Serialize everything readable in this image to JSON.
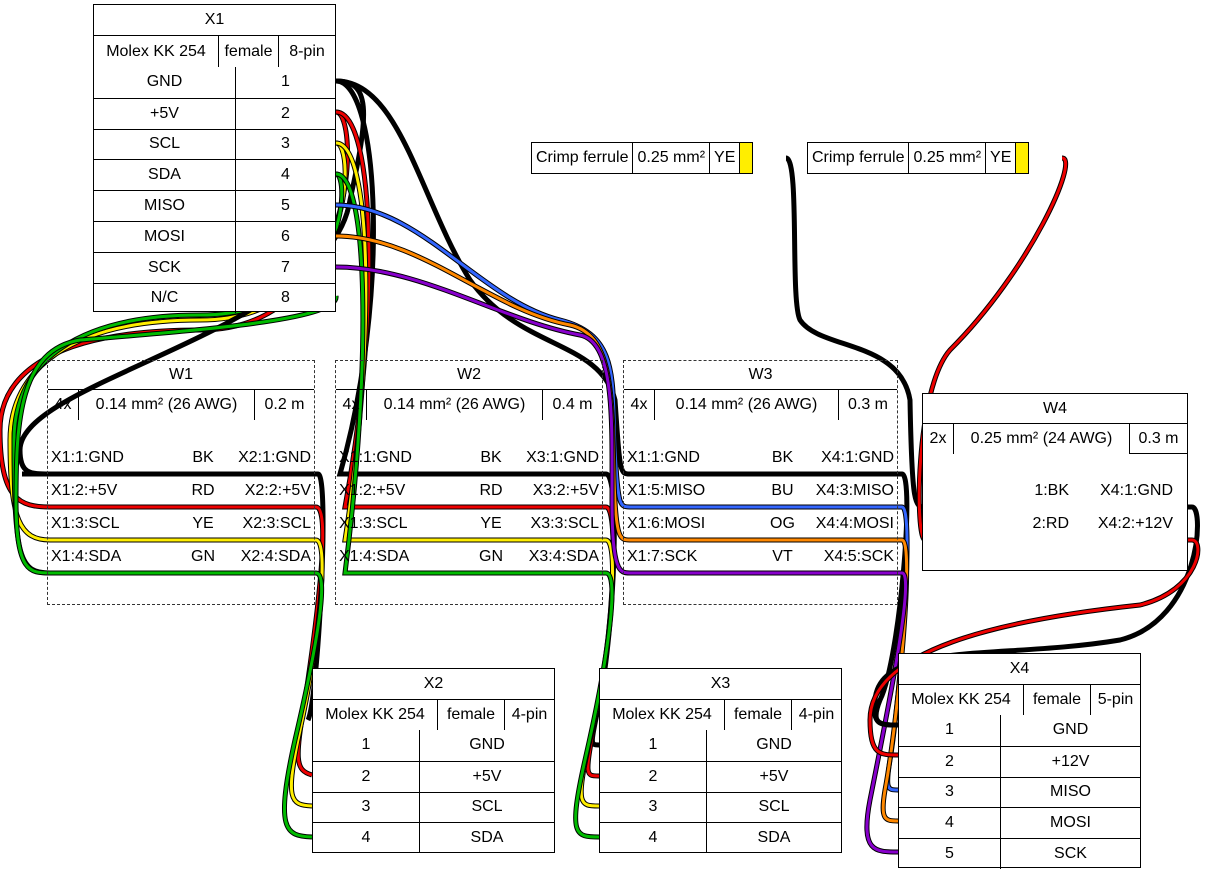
{
  "colors": {
    "BK": "#000000",
    "RD": "#ee0000",
    "YE": "#ffee00",
    "GN": "#00bb00",
    "BU": "#3366ff",
    "OG": "#ff8800",
    "VT": "#8800cc"
  },
  "x1": {
    "title": "X1",
    "type": "Molex KK 254",
    "gender": "female",
    "pins": "8-pin",
    "rows": [
      [
        "GND",
        "1"
      ],
      [
        "+5V",
        "2"
      ],
      [
        "SCL",
        "3"
      ],
      [
        "SDA",
        "4"
      ],
      [
        "MISO",
        "5"
      ],
      [
        "MOSI",
        "6"
      ],
      [
        "SCK",
        "7"
      ],
      [
        "N/C",
        "8"
      ]
    ]
  },
  "x2": {
    "title": "X2",
    "type": "Molex KK 254",
    "gender": "female",
    "pins": "4-pin",
    "rows": [
      [
        "1",
        "GND"
      ],
      [
        "2",
        "+5V"
      ],
      [
        "3",
        "SCL"
      ],
      [
        "4",
        "SDA"
      ]
    ]
  },
  "x3": {
    "title": "X3",
    "type": "Molex KK 254",
    "gender": "female",
    "pins": "4-pin",
    "rows": [
      [
        "1",
        "GND"
      ],
      [
        "2",
        "+5V"
      ],
      [
        "3",
        "SCL"
      ],
      [
        "4",
        "SDA"
      ]
    ]
  },
  "x4": {
    "title": "X4",
    "type": "Molex KK 254",
    "gender": "female",
    "pins": "5-pin",
    "rows": [
      [
        "1",
        "GND"
      ],
      [
        "2",
        "+12V"
      ],
      [
        "3",
        "MISO"
      ],
      [
        "4",
        "MOSI"
      ],
      [
        "5",
        "SCK"
      ]
    ]
  },
  "ferrule1": {
    "name": "Crimp ferrule",
    "size": "0.25 mm²",
    "color": "YE"
  },
  "ferrule2": {
    "name": "Crimp ferrule",
    "size": "0.25 mm²",
    "color": "YE"
  },
  "w1": {
    "title": "W1",
    "count": "4x",
    "gauge": "0.14 mm² (26 AWG)",
    "length": "0.2 m",
    "wires": [
      [
        "X1:1:GND",
        "BK",
        "X2:1:GND"
      ],
      [
        "X1:2:+5V",
        "RD",
        "X2:2:+5V"
      ],
      [
        "X1:3:SCL",
        "YE",
        "X2:3:SCL"
      ],
      [
        "X1:4:SDA",
        "GN",
        "X2:4:SDA"
      ]
    ]
  },
  "w2": {
    "title": "W2",
    "count": "4x",
    "gauge": "0.14 mm² (26 AWG)",
    "length": "0.4 m",
    "wires": [
      [
        "X1:1:GND",
        "BK",
        "X3:1:GND"
      ],
      [
        "X1:2:+5V",
        "RD",
        "X3:2:+5V"
      ],
      [
        "X1:3:SCL",
        "YE",
        "X3:3:SCL"
      ],
      [
        "X1:4:SDA",
        "GN",
        "X3:4:SDA"
      ]
    ]
  },
  "w3": {
    "title": "W3",
    "count": "4x",
    "gauge": "0.14 mm² (26 AWG)",
    "length": "0.3 m",
    "wires": [
      [
        "X1:1:GND",
        "BK",
        "X4:1:GND"
      ],
      [
        "X1:5:MISO",
        "BU",
        "X4:3:MISO"
      ],
      [
        "X1:6:MOSI",
        "OG",
        "X4:4:MOSI"
      ],
      [
        "X1:7:SCK",
        "VT",
        "X4:5:SCK"
      ]
    ]
  },
  "w4": {
    "title": "W4",
    "count": "2x",
    "gauge": "0.25 mm² (24 AWG)",
    "length": "0.3 m",
    "wires": [
      [
        "1:BK",
        "X4:1:GND"
      ],
      [
        "2:RD",
        "X4:2:+12V"
      ]
    ]
  }
}
